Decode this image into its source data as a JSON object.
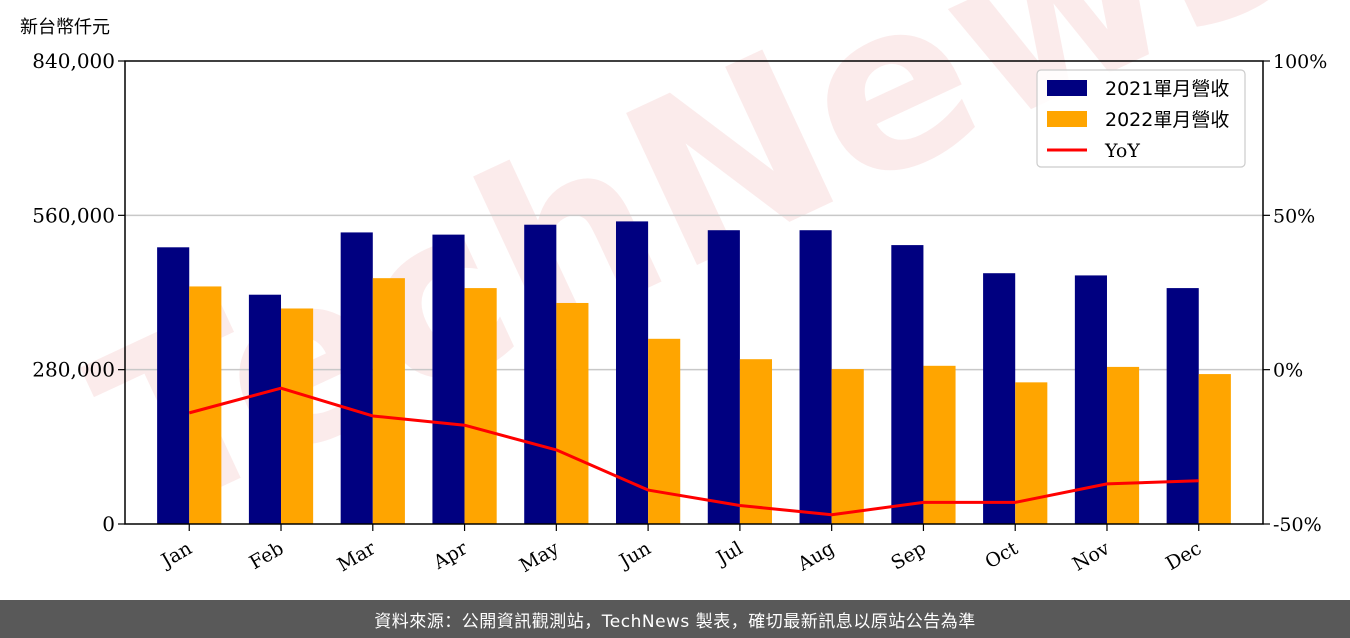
{
  "chart_data": {
    "type": "bar",
    "y_unit_label": "新台幣仟元",
    "categories": [
      "Jan",
      "Feb",
      "Mar",
      "Apr",
      "May",
      "Jun",
      "Jul",
      "Aug",
      "Sep",
      "Oct",
      "Nov",
      "Dec"
    ],
    "series": [
      {
        "name": "2021單月營收",
        "type": "bar",
        "axis": "left",
        "color": "#000080",
        "values": [
          502000,
          416000,
          529000,
          525000,
          543000,
          549000,
          533000,
          533000,
          506000,
          455000,
          451000,
          428000
        ]
      },
      {
        "name": "2022單月營收",
        "type": "bar",
        "axis": "left",
        "color": "#FFA500",
        "values": [
          431000,
          391000,
          446000,
          428000,
          401000,
          336000,
          299000,
          281000,
          287000,
          257000,
          285000,
          272000
        ]
      },
      {
        "name": "YoY",
        "type": "line",
        "axis": "right",
        "color": "#FF0000",
        "values": [
          -14,
          -6,
          -15,
          -18,
          -26,
          -39,
          -44,
          -47,
          -43,
          -43,
          -37,
          -36
        ]
      }
    ],
    "y_left": {
      "lim": [
        0,
        840000
      ],
      "ticks": [
        0,
        280000,
        560000,
        840000
      ],
      "tick_labels": [
        "0",
        "280,000",
        "560,000",
        "840,000"
      ]
    },
    "y_right": {
      "lim": [
        -50,
        100
      ],
      "ticks": [
        -50,
        0,
        50,
        100
      ],
      "tick_labels": [
        "-50%",
        "0%",
        "50%",
        "100%"
      ]
    },
    "grid": true,
    "legend_position": "top-right"
  },
  "watermark": "TechNews",
  "footer_text": "資料來源：公開資訊觀測站，TechNews 製表，確切最新訊息以原站公告為準"
}
